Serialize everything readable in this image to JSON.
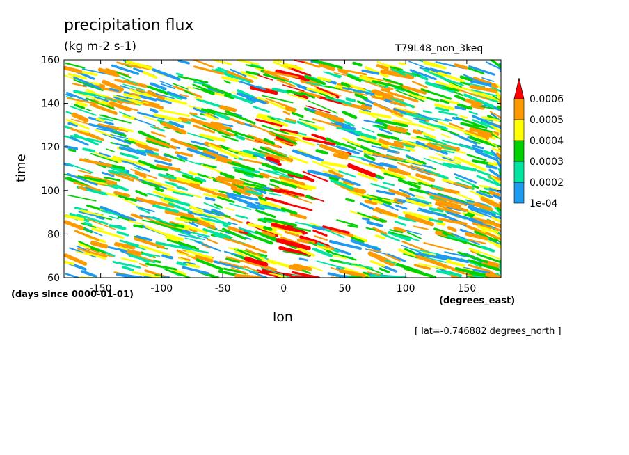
{
  "chart_data": {
    "type": "heatmap",
    "title": "precipitation flux",
    "units": "(kg m-2 s-1)",
    "run_label": "T79L48_non_3keq",
    "xlabel": "lon",
    "x_units": "(degrees_east)",
    "ylabel": "time",
    "y_units": "(days since 0000-01-01)",
    "annotation": "[ lat=-0.746882 degrees_north ]",
    "xlim": [
      -180,
      178
    ],
    "ylim": [
      60,
      160
    ],
    "x_ticks": [
      -150,
      -100,
      -50,
      0,
      50,
      100,
      150
    ],
    "y_ticks": [
      60,
      80,
      100,
      120,
      140,
      160
    ],
    "x_tick_labels": [
      "-150",
      "-100",
      "-50",
      "0",
      "50",
      "100",
      "150"
    ],
    "y_tick_labels": [
      "60",
      "80",
      "100",
      "120",
      "140",
      "160"
    ],
    "colorbar": {
      "levels": [
        0.0001,
        0.0002,
        0.0003,
        0.0004,
        0.0005,
        0.0006
      ],
      "level_labels": [
        "1e-04",
        "0.0002",
        "0.0003",
        "0.0004",
        "0.0005",
        "0.0006"
      ],
      "colors": [
        "#1e9bf0",
        "#00e6a0",
        "#00d200",
        "#ffff00",
        "#ff9900",
        "#ff0000"
      ],
      "extend": "max"
    },
    "features": "dense westward-propagating streaks of precipitation; strongest (>0.0006) concentrated near lon 0 throughout the record"
  }
}
